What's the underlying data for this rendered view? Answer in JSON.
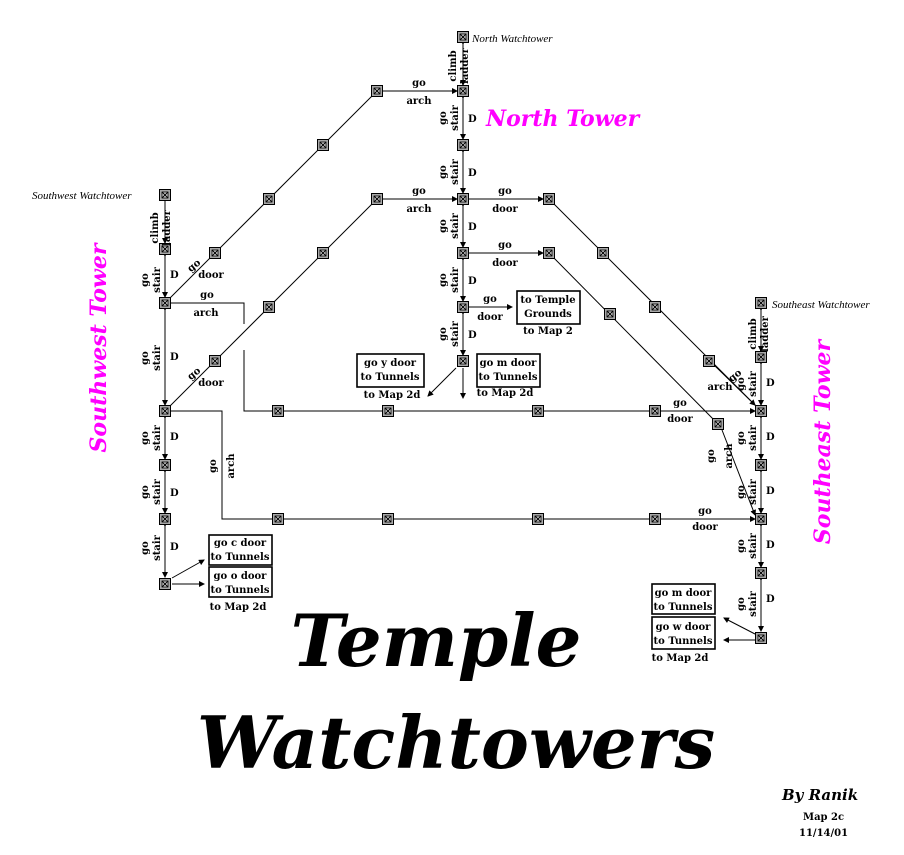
{
  "towers": {
    "north": "North Tower",
    "southwest": "Southwest Tower",
    "southeast": "Southeast Tower"
  },
  "watchtowers": {
    "north": "North Watchtower",
    "southwest": "Southwest Watchtower",
    "southeast": "Southeast Watchtower"
  },
  "labels": {
    "go": "go",
    "arch": "arch",
    "door": "door",
    "stair": "stair",
    "climb": "climb",
    "ladder": "ladder",
    "d": "D"
  },
  "exits": {
    "temple_grounds": [
      "to Temple",
      "Grounds"
    ],
    "temple_grounds_note": "to Map 2",
    "y_door": [
      "go y door",
      "to Tunnels"
    ],
    "y_door_note": "to Map 2d",
    "n_m_door": [
      "go m door",
      "to Tunnels"
    ],
    "n_m_door_note": "to Map 2d",
    "c_door": [
      "go c door",
      "to Tunnels"
    ],
    "o_door": [
      "go o door",
      "to Tunnels"
    ],
    "sw_note": "to Map 2d",
    "se_m_door": [
      "go m door",
      "to Tunnels"
    ],
    "w_door": [
      "go w door",
      "to Tunnels"
    ],
    "se_note": "to Map 2d"
  },
  "title": {
    "line1": "Temple",
    "line2": "Watchtowers"
  },
  "credit": {
    "by": "By Ranik",
    "map": "Map 2c",
    "date": "11/14/01"
  }
}
